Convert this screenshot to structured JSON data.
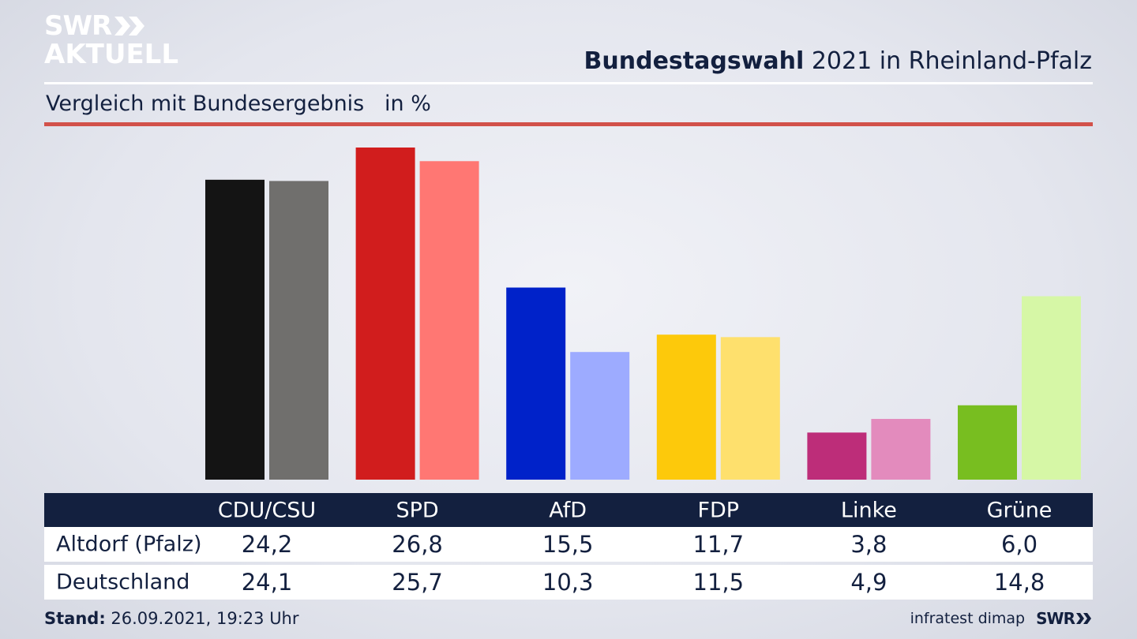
{
  "branding": {
    "logo_line1": "SWR",
    "logo_line2": "AKTUELL",
    "footer_source": "infratest dimap",
    "footer_logo": "SWR"
  },
  "header": {
    "title_bold": "Bundestagswahl",
    "title_rest": "2021 in Rheinland-Pfalz",
    "subtitle": "Vergleich mit Bundesergebnis   in %"
  },
  "footer": {
    "stand_label": "Stand:",
    "stand_value": "26.09.2021, 19:23 Uhr"
  },
  "colors": {
    "navy": "#13203f",
    "accent_red": "#d2514a",
    "local_bars": [
      "#141414",
      "#d11d1d",
      "#0022c9",
      "#fdc90b",
      "#bd2d79",
      "#78be20"
    ],
    "national_bars": [
      "#706f6d",
      "#ff7773",
      "#9dabff",
      "#fee06d",
      "#e38bbd",
      "#d6f7a6"
    ]
  },
  "chart_data": {
    "type": "bar",
    "categories": [
      "CDU/CSU",
      "SPD",
      "AfD",
      "FDP",
      "Linke",
      "Grüne"
    ],
    "series": [
      {
        "name": "Altdorf (Pfalz)",
        "values": [
          24.2,
          26.8,
          15.5,
          11.7,
          3.8,
          6.0
        ],
        "labels": [
          "24,2",
          "26,8",
          "15,5",
          "11,7",
          "3,8",
          "6,0"
        ]
      },
      {
        "name": "Deutschland",
        "values": [
          24.1,
          25.7,
          10.3,
          11.5,
          4.9,
          14.8
        ],
        "labels": [
          "24,1",
          "25,7",
          "10,3",
          "11,5",
          "4,9",
          "14,8"
        ]
      }
    ],
    "title": "Bundestagswahl 2021 in Rheinland-Pfalz",
    "subtitle": "Vergleich mit Bundesergebnis   in %",
    "ylim": [
      0,
      26.8
    ],
    "grid": false,
    "legend": "table below chart"
  }
}
